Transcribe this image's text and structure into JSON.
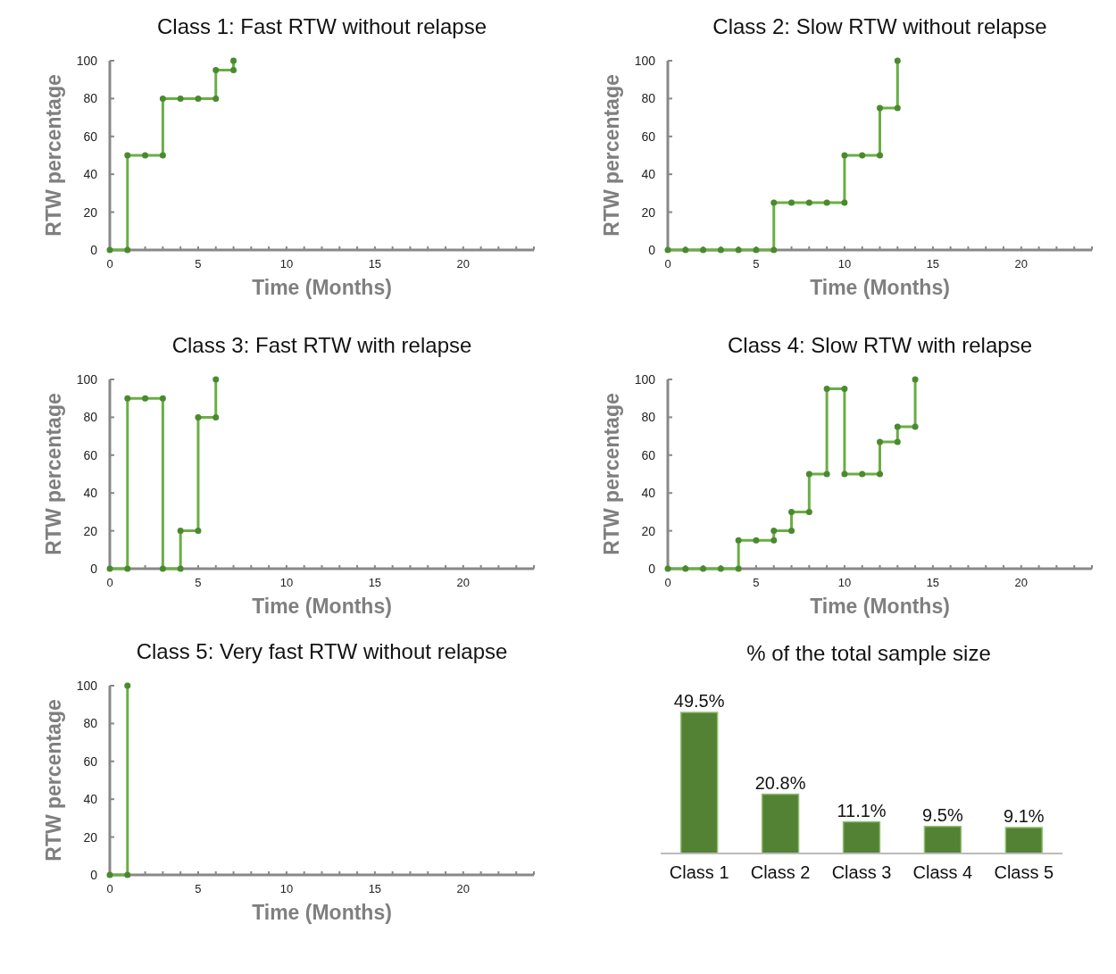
{
  "chart_data": [
    {
      "type": "line",
      "title": "Class 1: Fast RTW without relapse",
      "xlabel": "Time (Months)",
      "ylabel": "RTW percentage",
      "series": [
        {
          "color": "#6aae45",
          "x": [
            0,
            1,
            1,
            2,
            3,
            3,
            4,
            5,
            6,
            6,
            7,
            7
          ],
          "values": [
            0,
            0,
            50,
            50,
            50,
            80,
            80,
            80,
            80,
            95,
            95,
            100
          ]
        }
      ],
      "xlim": [
        0,
        24
      ],
      "xticks": [
        0,
        {
          "value": 1,
          "label": null
        },
        {
          "value": 2,
          "label": null
        },
        {
          "value": 3,
          "label": null
        },
        {
          "value": 4,
          "label": null
        },
        5,
        {
          "value": 6,
          "label": null
        },
        {
          "value": 7,
          "label": null
        },
        {
          "value": 8,
          "label": null
        },
        {
          "value": 9,
          "label": null
        },
        10,
        {
          "value": 11,
          "label": null
        },
        {
          "value": 12,
          "label": null
        },
        {
          "value": 13,
          "label": null
        },
        {
          "value": 14,
          "label": null
        },
        15,
        {
          "value": 16,
          "label": null
        },
        {
          "value": 17,
          "label": null
        },
        {
          "value": 18,
          "label": null
        },
        {
          "value": 19,
          "label": null
        },
        20,
        {
          "value": 21,
          "label": null
        },
        {
          "value": 22,
          "label": null
        },
        {
          "value": 23,
          "label": null
        },
        {
          "value": 24,
          "label": null
        }
      ],
      "ylim": [
        0,
        100
      ],
      "yticks": [
        0,
        20,
        40,
        60,
        80,
        100
      ],
      "grid": false,
      "marker": "circle",
      "line_style": "solid"
    },
    {
      "type": "line",
      "title": "Class 2: Slow RTW without relapse",
      "xlabel": "Time (Months)",
      "ylabel": "RTW percentage",
      "series": [
        {
          "color": "#6aae45",
          "x": [
            0,
            1,
            2,
            3,
            4,
            5,
            6,
            6,
            7,
            8,
            9,
            10,
            10,
            11,
            12,
            12,
            13,
            13
          ],
          "values": [
            0,
            0,
            0,
            0,
            0,
            0,
            0,
            25,
            25,
            25,
            25,
            25,
            50,
            50,
            50,
            75,
            75,
            100
          ]
        }
      ],
      "xlim": [
        0,
        24
      ],
      "xticks": [
        0,
        {
          "value": 1,
          "label": null
        },
        {
          "value": 2,
          "label": null
        },
        {
          "value": 3,
          "label": null
        },
        {
          "value": 4,
          "label": null
        },
        5,
        {
          "value": 6,
          "label": null
        },
        {
          "value": 7,
          "label": null
        },
        {
          "value": 8,
          "label": null
        },
        {
          "value": 9,
          "label": null
        },
        10,
        {
          "value": 11,
          "label": null
        },
        {
          "value": 12,
          "label": null
        },
        {
          "value": 13,
          "label": null
        },
        {
          "value": 14,
          "label": null
        },
        15,
        {
          "value": 16,
          "label": null
        },
        {
          "value": 17,
          "label": null
        },
        {
          "value": 18,
          "label": null
        },
        {
          "value": 19,
          "label": null
        },
        20,
        {
          "value": 21,
          "label": null
        },
        {
          "value": 22,
          "label": null
        },
        {
          "value": 23,
          "label": null
        },
        {
          "value": 24,
          "label": null
        }
      ],
      "ylim": [
        0,
        100
      ],
      "yticks": [
        0,
        20,
        40,
        60,
        80,
        100
      ],
      "grid": false,
      "marker": "circle",
      "line_style": "solid"
    },
    {
      "type": "line",
      "title": "Class 3: Fast RTW with relapse",
      "xlabel": "Time (Months)",
      "ylabel": "RTW percentage",
      "series": [
        {
          "color": "#6aae45",
          "x": [
            0,
            1,
            1,
            2,
            3,
            3,
            4,
            4,
            5,
            5,
            6,
            6
          ],
          "values": [
            0,
            0,
            90,
            90,
            90,
            0,
            0,
            20,
            20,
            80,
            80,
            100
          ]
        }
      ],
      "xlim": [
        0,
        24
      ],
      "xticks": [
        0,
        {
          "value": 1,
          "label": null
        },
        {
          "value": 2,
          "label": null
        },
        {
          "value": 3,
          "label": null
        },
        {
          "value": 4,
          "label": null
        },
        5,
        {
          "value": 6,
          "label": null
        },
        {
          "value": 7,
          "label": null
        },
        {
          "value": 8,
          "label": null
        },
        {
          "value": 9,
          "label": null
        },
        10,
        {
          "value": 11,
          "label": null
        },
        {
          "value": 12,
          "label": null
        },
        {
          "value": 13,
          "label": null
        },
        {
          "value": 14,
          "label": null
        },
        15,
        {
          "value": 16,
          "label": null
        },
        {
          "value": 17,
          "label": null
        },
        {
          "value": 18,
          "label": null
        },
        {
          "value": 19,
          "label": null
        },
        20,
        {
          "value": 21,
          "label": null
        },
        {
          "value": 22,
          "label": null
        },
        {
          "value": 23,
          "label": null
        },
        {
          "value": 24,
          "label": null
        }
      ],
      "ylim": [
        0,
        100
      ],
      "yticks": [
        0,
        20,
        40,
        60,
        80,
        100
      ],
      "grid": false,
      "marker": "circle",
      "line_style": "solid"
    },
    {
      "type": "line",
      "title": "Class 4: Slow RTW with relapse",
      "xlabel": "Time (Months)",
      "ylabel": "RTW percentage",
      "series": [
        {
          "color": "#6aae45",
          "x": [
            0,
            1,
            2,
            3,
            4,
            4,
            5,
            6,
            6,
            7,
            7,
            8,
            8,
            9,
            9,
            10,
            10,
            11,
            12,
            12,
            13,
            13,
            14,
            14
          ],
          "values": [
            0,
            0,
            0,
            0,
            0,
            15,
            15,
            15,
            20,
            20,
            30,
            30,
            50,
            50,
            95,
            95,
            50,
            50,
            50,
            67,
            67,
            75,
            75,
            100
          ]
        }
      ],
      "xlim": [
        0,
        24
      ],
      "xticks": [
        0,
        {
          "value": 1,
          "label": null
        },
        {
          "value": 2,
          "label": null
        },
        {
          "value": 3,
          "label": null
        },
        {
          "value": 4,
          "label": null
        },
        5,
        {
          "value": 6,
          "label": null
        },
        {
          "value": 7,
          "label": null
        },
        {
          "value": 8,
          "label": null
        },
        {
          "value": 9,
          "label": null
        },
        10,
        {
          "value": 11,
          "label": null
        },
        {
          "value": 12,
          "label": null
        },
        {
          "value": 13,
          "label": null
        },
        {
          "value": 14,
          "label": null
        },
        15,
        {
          "value": 16,
          "label": null
        },
        {
          "value": 17,
          "label": null
        },
        {
          "value": 18,
          "label": null
        },
        {
          "value": 19,
          "label": null
        },
        20,
        {
          "value": 21,
          "label": null
        },
        {
          "value": 22,
          "label": null
        },
        {
          "value": 23,
          "label": null
        },
        {
          "value": 24,
          "label": null
        }
      ],
      "ylim": [
        0,
        100
      ],
      "yticks": [
        0,
        20,
        40,
        60,
        80,
        100
      ],
      "grid": false,
      "marker": "circle",
      "line_style": "solid"
    },
    {
      "type": "line",
      "title": "Class 5: Very fast RTW without relapse",
      "xlabel": "Time (Months)",
      "ylabel": "RTW percentage",
      "series": [
        {
          "color": "#6aae45",
          "x": [
            0,
            1,
            1
          ],
          "values": [
            0,
            0,
            100
          ]
        }
      ],
      "xlim": [
        0,
        24
      ],
      "xticks": [
        0,
        {
          "value": 1,
          "label": null
        },
        {
          "value": 2,
          "label": null
        },
        {
          "value": 3,
          "label": null
        },
        {
          "value": 4,
          "label": null
        },
        5,
        {
          "value": 6,
          "label": null
        },
        {
          "value": 7,
          "label": null
        },
        {
          "value": 8,
          "label": null
        },
        {
          "value": 9,
          "label": null
        },
        10,
        {
          "value": 11,
          "label": null
        },
        {
          "value": 12,
          "label": null
        },
        {
          "value": 13,
          "label": null
        },
        {
          "value": 14,
          "label": null
        },
        15,
        {
          "value": 16,
          "label": null
        },
        {
          "value": 17,
          "label": null
        },
        {
          "value": 18,
          "label": null
        },
        {
          "value": 19,
          "label": null
        },
        20,
        {
          "value": 21,
          "label": null
        },
        {
          "value": 22,
          "label": null
        },
        {
          "value": 23,
          "label": null
        },
        {
          "value": 24,
          "label": null
        }
      ],
      "ylim": [
        0,
        100
      ],
      "yticks": [
        0,
        20,
        40,
        60,
        80,
        100
      ],
      "grid": false,
      "marker": "circle",
      "line_style": "solid"
    },
    {
      "type": "bar",
      "title": "% of the total sample size",
      "categories": [
        "Class 1",
        "Class 2",
        "Class 3",
        "Class 4",
        "Class 5"
      ],
      "values": [
        49.5,
        20.8,
        11.1,
        9.5,
        9.1
      ],
      "value_labels": [
        "49.5%",
        "20.8%",
        "11.1%",
        "9.5%",
        "9.1%"
      ],
      "color": "#548235"
    }
  ]
}
